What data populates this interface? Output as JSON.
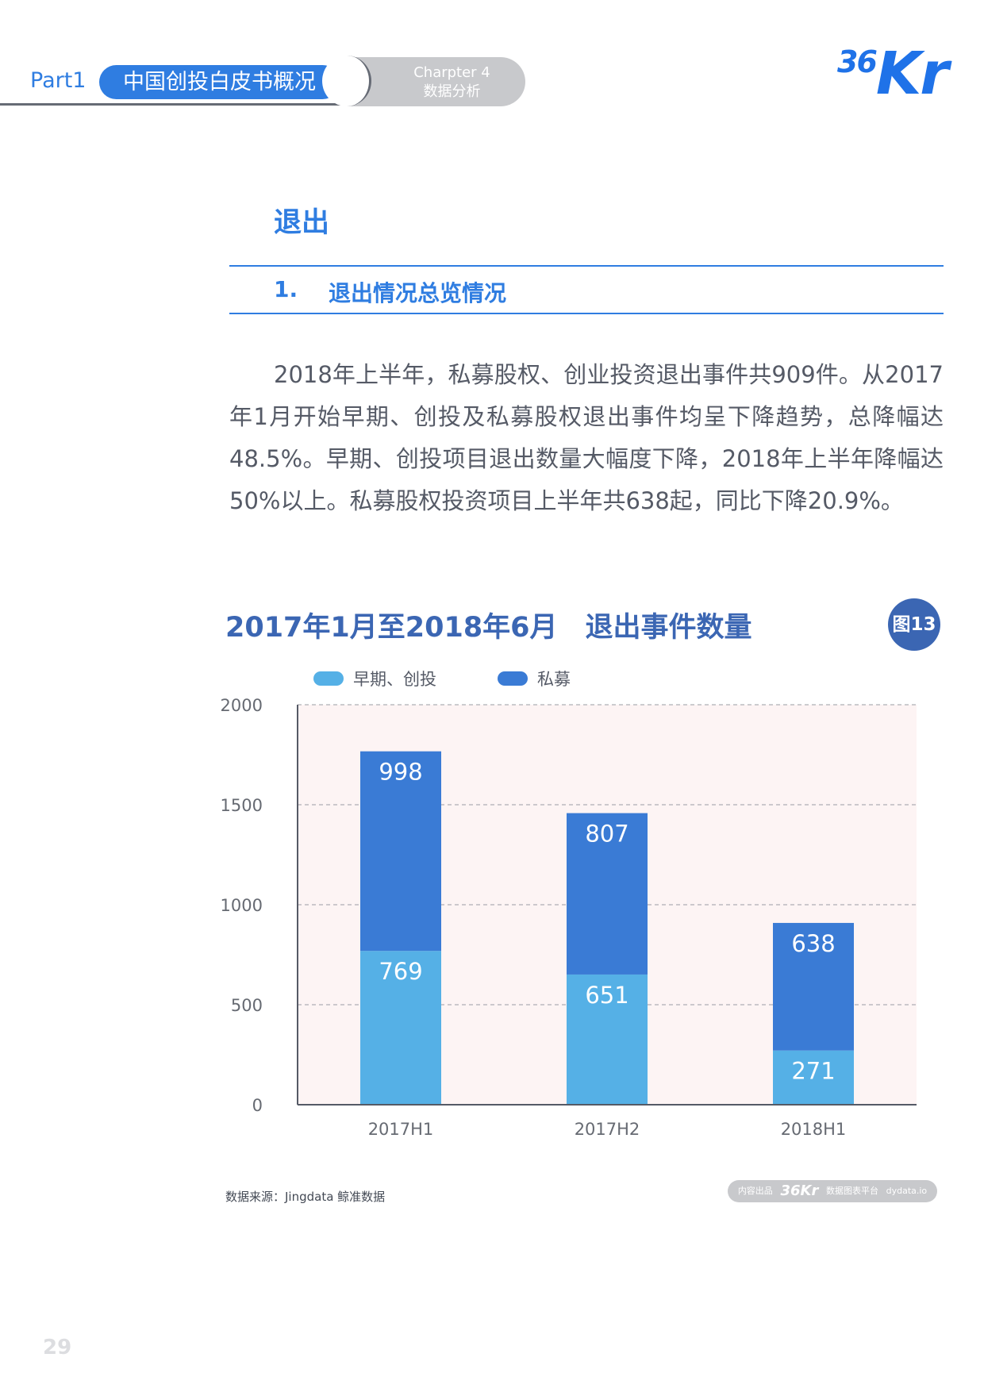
{
  "header": {
    "part_label": "Part1",
    "part_title": "中国创投白皮书概况",
    "chapter_title": "Charpter 4",
    "chapter_sub": "数据分析",
    "brand_36": "36",
    "brand_kr": "Kr"
  },
  "section": {
    "title": "退出",
    "subsection_number": "1.",
    "subsection_title": "退出情况总览情况"
  },
  "body_text": "2018年上半年，私募股权、创业投资退出事件共909件。从2017年1月开始早期、创投及私募股权退出事件均呈下降趋势，总降幅达48.5%。早期、创投项目退出数量大幅度下降，2018年上半年降幅达50%以上。私募股权投资项目上半年共638起，同比下降20.9%。",
  "chart": {
    "figure_badge": "图13"
  },
  "chart_data": {
    "type": "bar",
    "stacked": true,
    "title": "2017年1月至2018年6月　退出事件数量",
    "categories": [
      "2017H1",
      "2017H2",
      "2018H1"
    ],
    "series": [
      {
        "name": "早期、创投",
        "values": [
          769,
          651,
          271
        ],
        "color": "#55b0e6"
      },
      {
        "name": "私募",
        "values": [
          998,
          807,
          638
        ],
        "color": "#3a7bd5"
      }
    ],
    "ylim": [
      0,
      2000
    ],
    "yticks": [
      0,
      500,
      1000,
      1500,
      2000
    ],
    "grid": true,
    "legend": "top",
    "background": "#fdf4f4"
  },
  "footer": {
    "source": "数据来源：Jingdata 鲸准数据",
    "badge_left": "内容出品",
    "badge_brand": "36Kr",
    "badge_mid": "数据图表平台",
    "badge_right": "dydata.io",
    "page_number": "29"
  }
}
